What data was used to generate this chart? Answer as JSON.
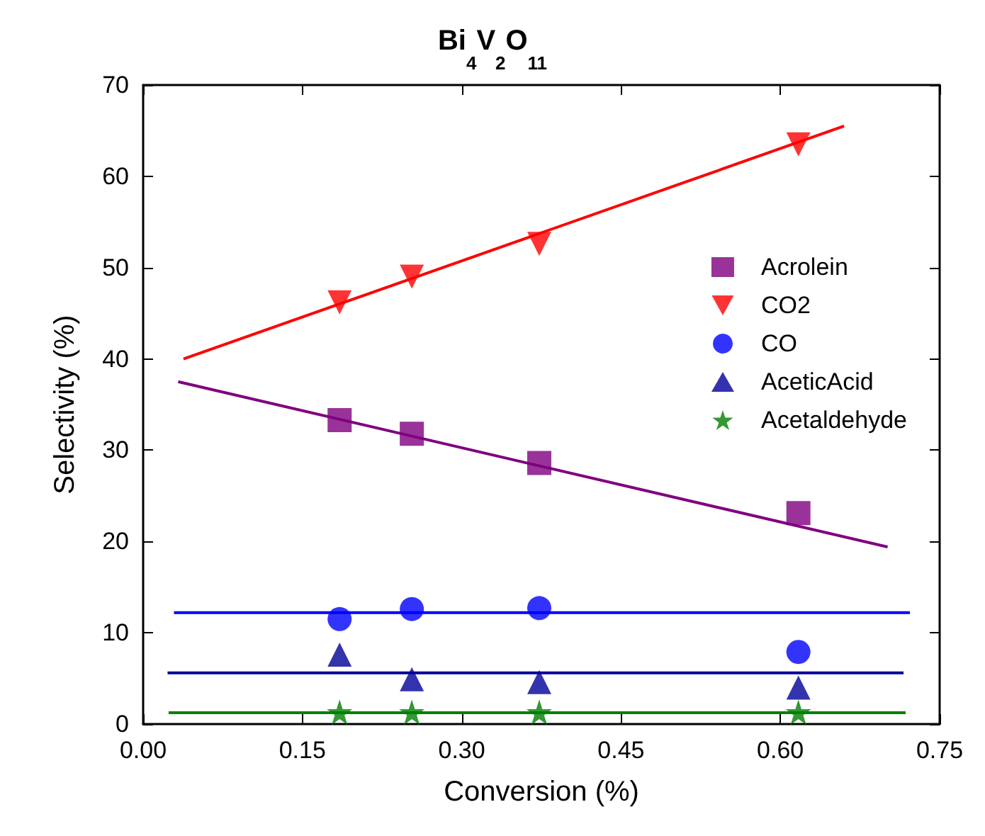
{
  "chart_data": {
    "type": "scatter",
    "title": "Bi$_{4}$V$_{2}$O$_{11}$",
    "xlabel": "Conversion (%)",
    "ylabel": "Selectivity (%)",
    "x": [
      0.185,
      0.253,
      0.373,
      0.617
    ],
    "series": [
      {
        "name": "Acrolein",
        "color": "#800080",
        "marker": "square",
        "values": [
          33.3,
          31.8,
          28.6,
          23.1
        ]
      },
      {
        "name": "CO2",
        "color": "#ff0000",
        "marker": "triangle-down",
        "values": [
          46.2,
          49.0,
          52.6,
          63.5
        ]
      },
      {
        "name": "CO",
        "color": "#0000ff",
        "marker": "circle",
        "values": [
          11.5,
          12.6,
          12.7,
          7.9
        ]
      },
      {
        "name": "AceticAcid",
        "color": "#000099",
        "marker": "triangle",
        "values": [
          7.6,
          4.9,
          4.6,
          4.0
        ]
      },
      {
        "name": "Acetaldehyde",
        "color": "#008000",
        "marker": "star",
        "values": [
          1.3,
          1.3,
          1.3,
          1.3
        ]
      },
      {
        "type": "line",
        "color": "#800080",
        "marker": "none",
        "x": [
          0.033,
          0.701
        ],
        "values": [
          37.5,
          19.4
        ]
      },
      {
        "type": "line",
        "color": "#ff0000",
        "marker": "none",
        "x": [
          0.038,
          0.66
        ],
        "values": [
          40.0,
          65.5
        ]
      },
      {
        "type": "line",
        "color": "#0000ff",
        "marker": "none",
        "x": [
          0.029,
          0.722
        ],
        "values": [
          12.2,
          12.2
        ]
      },
      {
        "type": "line",
        "color": "#000099",
        "marker": "none",
        "x": [
          0.023,
          0.716
        ],
        "values": [
          5.6,
          5.6
        ]
      },
      {
        "type": "line",
        "color": "#008000",
        "marker": "none",
        "x": [
          0.024,
          0.718
        ],
        "values": [
          1.25,
          1.25
        ]
      }
    ],
    "xlim": [
      0,
      0.75
    ],
    "xticks": [
      {
        "value": 0,
        "label": "0.00"
      },
      0.15,
      {
        "value": 0.3,
        "label": "0.30"
      },
      0.45,
      {
        "value": 0.6,
        "label": "0.60"
      },
      0.75
    ],
    "ylim": [
      0,
      70
    ],
    "yticks": [
      0,
      10,
      20,
      30,
      40,
      50,
      60,
      70
    ],
    "grid": false,
    "legend": "right"
  }
}
